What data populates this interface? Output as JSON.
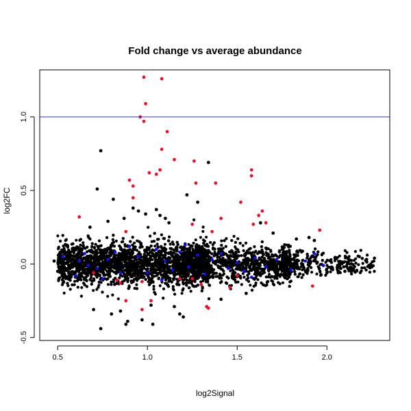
{
  "chart_data": {
    "type": "scatter",
    "title": "Fold change vs average abundance",
    "xlabel": "log2Signal",
    "ylabel": "log2FC",
    "xlim": [
      0.4,
      2.35
    ],
    "ylim": [
      -0.52,
      1.32
    ],
    "x_ticks": [
      0.5,
      1.0,
      1.5,
      2.0
    ],
    "x_tick_labels": [
      "0.5",
      "1.0",
      "1.5",
      "2.0"
    ],
    "y_ticks": [
      -0.5,
      0.0,
      0.5,
      1.0
    ],
    "y_tick_labels": [
      "-0.5",
      "0.0",
      "0.5",
      "1.0"
    ],
    "grid": false,
    "reference_line": {
      "y": 1.0,
      "color": "#3333cc"
    },
    "colors": {
      "background_points": "#000000",
      "highlight_red": "#e8102a",
      "highlight_blue": "#1010e0"
    },
    "background_cloud": {
      "description_free": true,
      "x_range": [
        0.45,
        2.27
      ],
      "center_y": 0.0,
      "spread_y": 0.07
    },
    "series": [
      {
        "color": "#000000",
        "points": [
          [
            0.74,
            0.77
          ],
          [
            0.72,
            0.51
          ],
          [
            0.81,
            0.44
          ],
          [
            0.92,
            0.38
          ],
          [
            0.95,
            0.36
          ],
          [
            0.99,
            0.34
          ],
          [
            1.05,
            0.37
          ],
          [
            1.07,
            0.33
          ],
          [
            1.1,
            0.31
          ],
          [
            1.22,
            0.47
          ],
          [
            1.28,
            0.42
          ],
          [
            1.34,
            0.69
          ],
          [
            1.12,
            0.28
          ],
          [
            0.87,
            0.31
          ],
          [
            0.78,
            0.29
          ],
          [
            0.68,
            0.25
          ],
          [
            1.63,
            0.28
          ],
          [
            1.7,
            0.21
          ],
          [
            1.83,
            0.17
          ],
          [
            1.9,
            0.18
          ],
          [
            1.93,
            0.16
          ],
          [
            0.74,
            -0.44
          ],
          [
            0.88,
            -0.41
          ],
          [
            0.89,
            -0.39
          ],
          [
            0.97,
            -0.38
          ],
          [
            1.03,
            -0.41
          ],
          [
            1.18,
            -0.34
          ],
          [
            1.2,
            -0.36
          ],
          [
            0.8,
            -0.34
          ],
          [
            0.85,
            -0.32
          ],
          [
            0.7,
            -0.31
          ],
          [
            1.41,
            -0.24
          ],
          [
            1.55,
            -0.2
          ],
          [
            1.67,
            -0.12
          ],
          [
            1.78,
            -0.1
          ],
          [
            2.0,
            -0.06
          ],
          [
            2.1,
            -0.05
          ],
          [
            2.25,
            -0.02
          ],
          [
            2.22,
            0.03
          ],
          [
            2.18,
            0.05
          ],
          [
            0.55,
            0.05
          ],
          [
            0.5,
            -0.05
          ],
          [
            0.48,
            0.02
          ],
          [
            1.02,
            -0.28
          ],
          [
            1.15,
            -0.29
          ]
        ]
      },
      {
        "color": "#e8102a",
        "points": [
          [
            0.98,
            1.27
          ],
          [
            1.08,
            1.26
          ],
          [
            0.99,
            1.09
          ],
          [
            0.96,
            1.0
          ],
          [
            0.98,
            0.97
          ],
          [
            1.11,
            0.9
          ],
          [
            1.08,
            0.78
          ],
          [
            1.15,
            0.71
          ],
          [
            1.26,
            0.7
          ],
          [
            1.07,
            0.64
          ],
          [
            1.05,
            0.61
          ],
          [
            1.01,
            0.62
          ],
          [
            0.9,
            0.57
          ],
          [
            0.92,
            0.53
          ],
          [
            1.27,
            0.55
          ],
          [
            1.38,
            0.55
          ],
          [
            1.58,
            0.64
          ],
          [
            1.58,
            0.6
          ],
          [
            1.52,
            0.42
          ],
          [
            1.64,
            0.36
          ],
          [
            1.62,
            0.33
          ],
          [
            1.66,
            0.28
          ],
          [
            1.59,
            0.27
          ],
          [
            1.41,
            0.31
          ],
          [
            0.92,
            0.45
          ],
          [
            0.62,
            0.32
          ],
          [
            0.88,
            0.22
          ],
          [
            1.36,
            0.22
          ],
          [
            1.96,
            0.23
          ],
          [
            1.25,
            0.27
          ],
          [
            0.97,
            -0.12
          ],
          [
            0.85,
            -0.13
          ],
          [
            0.83,
            -0.11
          ],
          [
            1.18,
            -0.1
          ],
          [
            1.3,
            -0.14
          ],
          [
            1.46,
            -0.16
          ],
          [
            1.92,
            -0.15
          ],
          [
            1.34,
            -0.3
          ],
          [
            1.33,
            -0.29
          ],
          [
            1.02,
            -0.25
          ],
          [
            0.97,
            -0.31
          ],
          [
            0.88,
            -0.25
          ],
          [
            1.5,
            -0.08
          ],
          [
            0.7,
            -0.06
          ],
          [
            1.25,
            -0.1
          ]
        ]
      },
      {
        "color": "#1010e0",
        "points": [
          [
            0.53,
            0.05
          ],
          [
            0.62,
            0.02
          ],
          [
            0.65,
            0.07
          ],
          [
            0.67,
            -0.01
          ],
          [
            0.72,
            -0.03
          ],
          [
            0.78,
            0.03
          ],
          [
            0.82,
            0.08
          ],
          [
            0.85,
            -0.06
          ],
          [
            0.9,
            0.12
          ],
          [
            0.95,
            0.05
          ],
          [
            1.0,
            -0.06
          ],
          [
            1.05,
            0.1
          ],
          [
            1.1,
            0.02
          ],
          [
            1.14,
            -0.04
          ],
          [
            1.18,
            0.08
          ],
          [
            1.23,
            -0.02
          ],
          [
            1.28,
            0.06
          ],
          [
            1.32,
            -0.07
          ],
          [
            1.36,
            0.03
          ],
          [
            1.41,
            0.07
          ],
          [
            1.45,
            -0.03
          ],
          [
            1.5,
            0.01
          ],
          [
            1.54,
            -0.05
          ],
          [
            1.6,
            0.04
          ],
          [
            1.66,
            -0.02
          ],
          [
            1.72,
            0.03
          ],
          [
            1.8,
            -0.04
          ],
          [
            1.88,
            0.02
          ],
          [
            1.93,
            0.07
          ],
          [
            1.98,
            -0.01
          ],
          [
            0.6,
            -0.08
          ],
          [
            0.75,
            -0.1
          ],
          [
            1.08,
            -0.11
          ],
          [
            1.21,
            0.13
          ],
          [
            1.58,
            -0.09
          ]
        ]
      }
    ]
  }
}
